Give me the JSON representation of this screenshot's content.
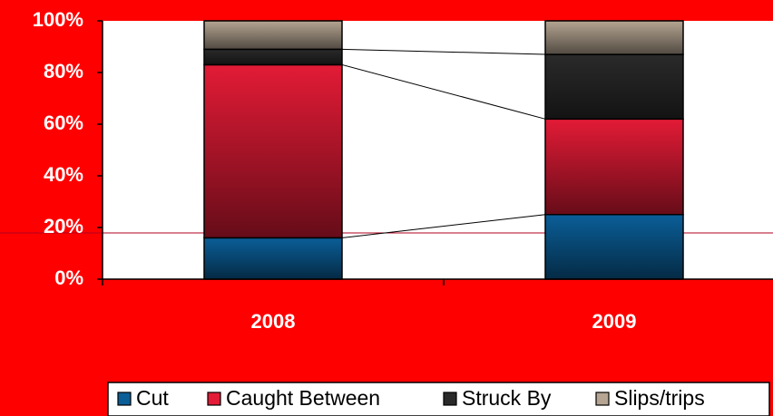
{
  "chart_data": {
    "type": "stacked_bar",
    "categories": [
      "2008",
      "2009"
    ],
    "series": [
      {
        "name": "Cut",
        "color": "#0a5e98",
        "values": [
          16,
          25
        ]
      },
      {
        "name": "Caught Between",
        "color": "#e31b36",
        "values": [
          67,
          37
        ]
      },
      {
        "name": "Struck By",
        "color": "#2a2a2a",
        "values": [
          6,
          25
        ]
      },
      {
        "name": "Slips/trips",
        "color": "#b5a592",
        "values": [
          11,
          13
        ]
      }
    ],
    "ylim": [
      0,
      100
    ],
    "yticks": [
      {
        "value": 0,
        "label": "0%"
      },
      {
        "value": 20,
        "label": "20%"
      },
      {
        "value": 40,
        "label": "40%"
      },
      {
        "value": 60,
        "label": "60%"
      },
      {
        "value": 80,
        "label": "80%"
      },
      {
        "value": 100,
        "label": "100%"
      }
    ],
    "legend": "bottom"
  }
}
